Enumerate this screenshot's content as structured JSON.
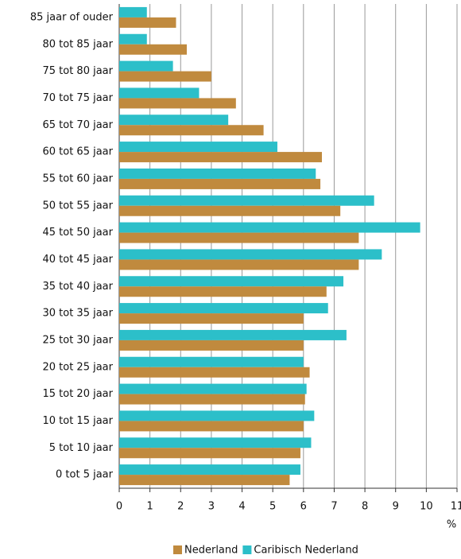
{
  "chart_data": {
    "type": "hbar",
    "categories": [
      "85 jaar of ouder",
      "80 tot 85 jaar",
      "75 tot 80 jaar",
      "70 tot 75 jaar",
      "65 tot 70 jaar",
      "60 tot 65 jaar",
      "55 tot 60 jaar",
      "50 tot 55 jaar",
      "45 tot 50 jaar",
      "40 tot 45 jaar",
      "35 tot 40 jaar",
      "30 tot 35 jaar",
      "25 tot 30 jaar",
      "20 tot 25 jaar",
      "15 tot 20 jaar",
      "10 tot 15 jaar",
      "5 tot 10 jaar",
      "0 tot 5 jaar"
    ],
    "series": [
      {
        "name": "Nederland",
        "color": "#c08a3e",
        "values": [
          1.85,
          2.2,
          3.0,
          3.8,
          4.7,
          6.6,
          6.55,
          7.2,
          7.8,
          7.8,
          6.75,
          6.0,
          6.0,
          6.2,
          6.05,
          6.0,
          5.9,
          5.55
        ]
      },
      {
        "name": "Caribisch Nederland",
        "color": "#2cbfc9",
        "values": [
          0.9,
          0.9,
          1.75,
          2.6,
          3.55,
          5.15,
          6.4,
          8.3,
          9.8,
          8.55,
          7.3,
          6.8,
          7.4,
          6.0,
          6.1,
          6.35,
          6.25,
          5.9
        ]
      }
    ],
    "xlabel": "%",
    "xlim": [
      0,
      11
    ],
    "xticks": [
      0,
      1,
      2,
      3,
      4,
      5,
      6,
      7,
      8,
      9,
      10,
      11
    ],
    "grid": true,
    "legend": "bottom"
  }
}
